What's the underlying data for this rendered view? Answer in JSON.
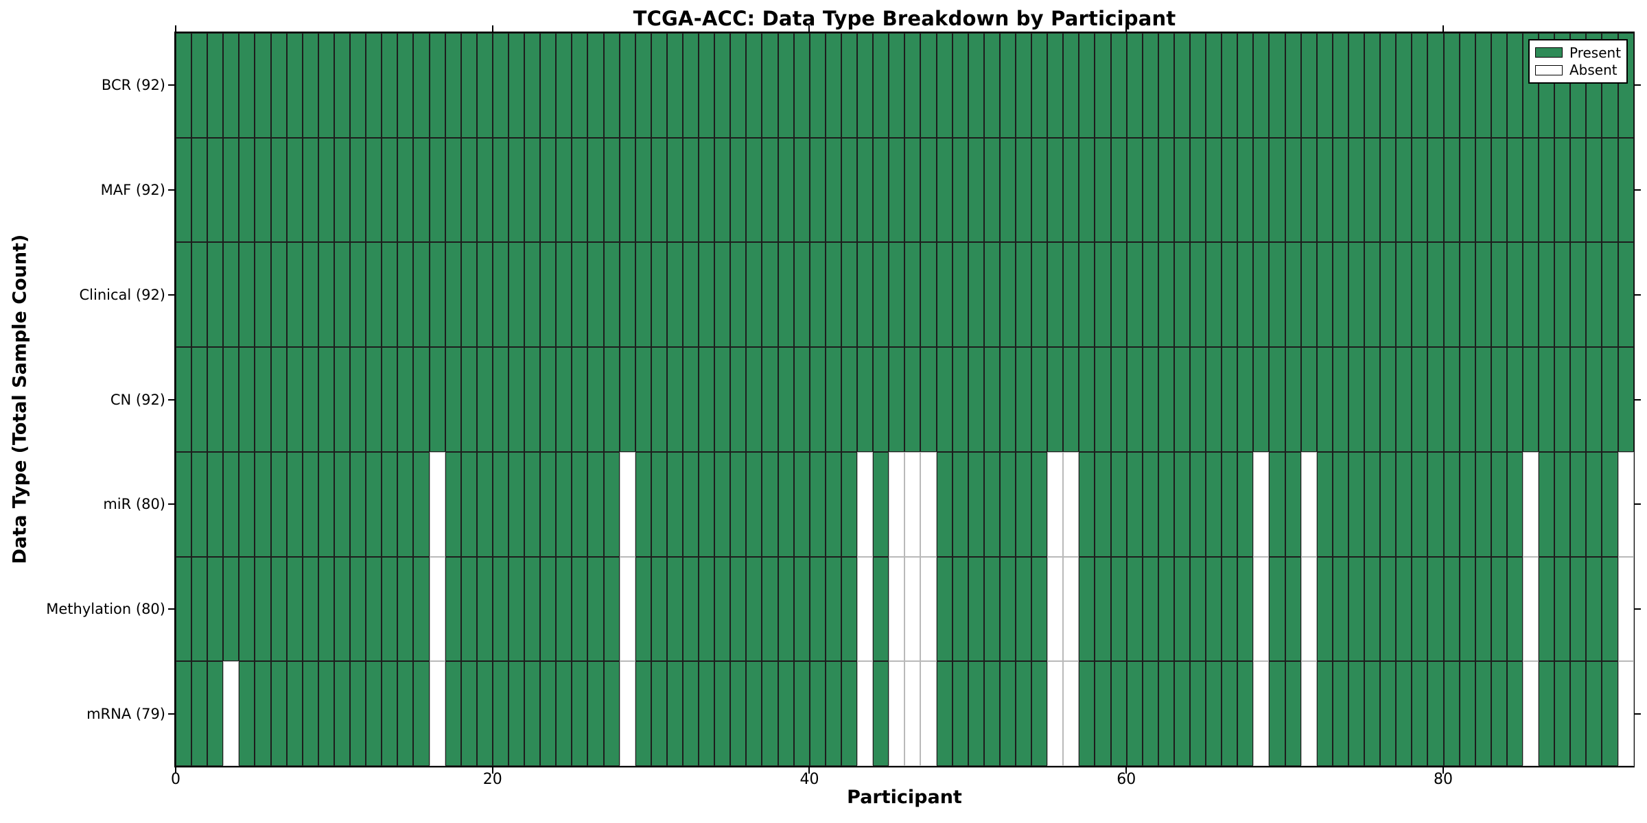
{
  "title": "TCGA-ACC: Data Type Breakdown by Participant",
  "xlabel": "Participant",
  "ylabel": "Data Type (Total Sample Count)",
  "legend": {
    "present_label": "Present",
    "absent_label": "Absent"
  },
  "colors": {
    "present": "#2E8B57",
    "absent": "#FFFFFF",
    "present_border": "#1d1d1d",
    "absent_border": "#b9b9b9",
    "spine": "#000000"
  },
  "chart_data": {
    "type": "heatmap",
    "title": "TCGA-ACC: Data Type Breakdown by Participant",
    "xlabel": "Participant",
    "ylabel": "Data Type (Total Sample Count)",
    "n_participants": 92,
    "x_range": [
      0,
      92
    ],
    "x_ticks": [
      0,
      20,
      40,
      60,
      80
    ],
    "grid": false,
    "legend_position": "upper right",
    "legend_entries": [
      {
        "label": "Present",
        "color": "#2E8B57"
      },
      {
        "label": "Absent",
        "color": "#FFFFFF"
      }
    ],
    "rows": [
      {
        "label": "BCR (92)",
        "data_type": "BCR",
        "total_samples": 92,
        "absent_participants": []
      },
      {
        "label": "MAF (92)",
        "data_type": "MAF",
        "total_samples": 92,
        "absent_participants": []
      },
      {
        "label": "Clinical (92)",
        "data_type": "Clinical",
        "total_samples": 92,
        "absent_participants": []
      },
      {
        "label": "CN (92)",
        "data_type": "CN",
        "total_samples": 92,
        "absent_participants": []
      },
      {
        "label": "miR (80)",
        "data_type": "miR",
        "total_samples": 80,
        "absent_participants": [
          16,
          28,
          43,
          45,
          46,
          47,
          55,
          56,
          68,
          71,
          85,
          91
        ]
      },
      {
        "label": "Methylation (80)",
        "data_type": "Methylation",
        "total_samples": 80,
        "absent_participants": [
          16,
          28,
          43,
          45,
          46,
          47,
          55,
          56,
          68,
          71,
          85,
          91
        ]
      },
      {
        "label": "mRNA (79)",
        "data_type": "mRNA",
        "total_samples": 79,
        "absent_participants": [
          3,
          16,
          28,
          43,
          45,
          46,
          47,
          55,
          56,
          68,
          71,
          85,
          91
        ]
      }
    ]
  }
}
